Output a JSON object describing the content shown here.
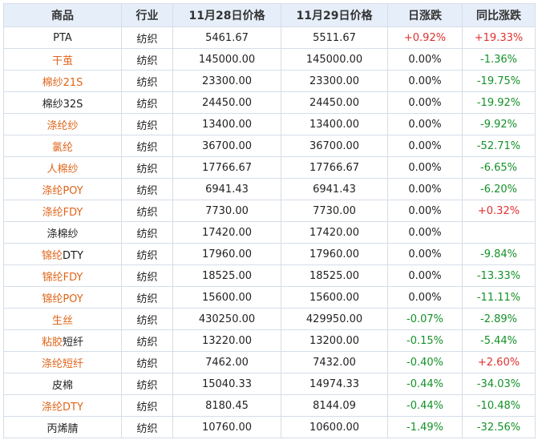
{
  "headers": [
    "商品",
    "行业",
    "11月28日价格",
    "11月29日价格",
    "日涨跌",
    "同比涨跌"
  ],
  "colors": {
    "orange": "#e0651b",
    "red": "#e03030",
    "green": "#149128",
    "header_bg": "#e6eef9",
    "border": "#d5dde8"
  },
  "rows": [
    {
      "name_a": "PTA",
      "name_b": "",
      "name_a_color": "dark",
      "name_b_color": "dark",
      "industry": "纺织",
      "price_1128": "5461.67",
      "price_1129": "5511.67",
      "daily": "+0.92%",
      "daily_color": "red",
      "yoy": "+19.33%",
      "yoy_color": "red"
    },
    {
      "name_a": "干茧",
      "name_b": "",
      "name_a_color": "orange",
      "name_b_color": "orange",
      "industry": "纺织",
      "price_1128": "145000.00",
      "price_1129": "145000.00",
      "daily": "0.00%",
      "daily_color": "dark",
      "yoy": "-1.36%",
      "yoy_color": "green"
    },
    {
      "name_a": "棉纱21S",
      "name_b": "",
      "name_a_color": "orange",
      "name_b_color": "orange",
      "industry": "纺织",
      "price_1128": "23300.00",
      "price_1129": "23300.00",
      "daily": "0.00%",
      "daily_color": "dark",
      "yoy": "-19.75%",
      "yoy_color": "green"
    },
    {
      "name_a": "棉纱32S",
      "name_b": "",
      "name_a_color": "dark",
      "name_b_color": "dark",
      "industry": "纺织",
      "price_1128": "24450.00",
      "price_1129": "24450.00",
      "daily": "0.00%",
      "daily_color": "dark",
      "yoy": "-19.92%",
      "yoy_color": "green"
    },
    {
      "name_a": "涤纶纱",
      "name_b": "",
      "name_a_color": "orange",
      "name_b_color": "orange",
      "industry": "纺织",
      "price_1128": "13400.00",
      "price_1129": "13400.00",
      "daily": "0.00%",
      "daily_color": "dark",
      "yoy": "-9.92%",
      "yoy_color": "green"
    },
    {
      "name_a": "氯纶",
      "name_b": "",
      "name_a_color": "orange",
      "name_b_color": "orange",
      "industry": "纺织",
      "price_1128": "36700.00",
      "price_1129": "36700.00",
      "daily": "0.00%",
      "daily_color": "dark",
      "yoy": "-52.71%",
      "yoy_color": "green"
    },
    {
      "name_a": "人棉纱",
      "name_b": "",
      "name_a_color": "orange",
      "name_b_color": "orange",
      "industry": "纺织",
      "price_1128": "17766.67",
      "price_1129": "17766.67",
      "daily": "0.00%",
      "daily_color": "dark",
      "yoy": "-6.65%",
      "yoy_color": "green"
    },
    {
      "name_a": "涤纶POY",
      "name_b": "",
      "name_a_color": "orange",
      "name_b_color": "orange",
      "industry": "纺织",
      "price_1128": "6941.43",
      "price_1129": "6941.43",
      "daily": "0.00%",
      "daily_color": "dark",
      "yoy": "-6.20%",
      "yoy_color": "green"
    },
    {
      "name_a": "涤纶FDY",
      "name_b": "",
      "name_a_color": "orange",
      "name_b_color": "orange",
      "industry": "纺织",
      "price_1128": "7730.00",
      "price_1129": "7730.00",
      "daily": "0.00%",
      "daily_color": "dark",
      "yoy": "+0.32%",
      "yoy_color": "red"
    },
    {
      "name_a": "涤棉纱",
      "name_b": "",
      "name_a_color": "dark",
      "name_b_color": "dark",
      "industry": "纺织",
      "price_1128": "17420.00",
      "price_1129": "17420.00",
      "daily": "0.00%",
      "daily_color": "dark",
      "yoy": "",
      "yoy_color": "dark"
    },
    {
      "name_a": "锦纶",
      "name_b": "DTY",
      "name_a_color": "orange",
      "name_b_color": "dark",
      "industry": "纺织",
      "price_1128": "17960.00",
      "price_1129": "17960.00",
      "daily": "0.00%",
      "daily_color": "dark",
      "yoy": "-9.84%",
      "yoy_color": "green"
    },
    {
      "name_a": "锦纶FDY",
      "name_b": "",
      "name_a_color": "orange",
      "name_b_color": "orange",
      "industry": "纺织",
      "price_1128": "18525.00",
      "price_1129": "18525.00",
      "daily": "0.00%",
      "daily_color": "dark",
      "yoy": "-13.33%",
      "yoy_color": "green"
    },
    {
      "name_a": "锦纶POY",
      "name_b": "",
      "name_a_color": "orange",
      "name_b_color": "orange",
      "industry": "纺织",
      "price_1128": "15600.00",
      "price_1129": "15600.00",
      "daily": "0.00%",
      "daily_color": "dark",
      "yoy": "-11.11%",
      "yoy_color": "green"
    },
    {
      "name_a": "生丝",
      "name_b": "",
      "name_a_color": "orange",
      "name_b_color": "orange",
      "industry": "纺织",
      "price_1128": "430250.00",
      "price_1129": "429950.00",
      "daily": "-0.07%",
      "daily_color": "green",
      "yoy": "-2.89%",
      "yoy_color": "green"
    },
    {
      "name_a": "粘胶",
      "name_b": "短纤",
      "name_a_color": "orange",
      "name_b_color": "dark",
      "industry": "纺织",
      "price_1128": "13220.00",
      "price_1129": "13200.00",
      "daily": "-0.15%",
      "daily_color": "green",
      "yoy": "-5.44%",
      "yoy_color": "green"
    },
    {
      "name_a": "涤纶短纤",
      "name_b": "",
      "name_a_color": "orange",
      "name_b_color": "orange",
      "industry": "纺织",
      "price_1128": "7462.00",
      "price_1129": "7432.00",
      "daily": "-0.40%",
      "daily_color": "green",
      "yoy": "+2.60%",
      "yoy_color": "red"
    },
    {
      "name_a": "皮棉",
      "name_b": "",
      "name_a_color": "dark",
      "name_b_color": "dark",
      "industry": "纺织",
      "price_1128": "15040.33",
      "price_1129": "14974.33",
      "daily": "-0.44%",
      "daily_color": "green",
      "yoy": "-34.03%",
      "yoy_color": "green"
    },
    {
      "name_a": "涤纶",
      "name_b": "DTY",
      "name_a_color": "orange",
      "name_b_color": "orange",
      "industry": "纺织",
      "price_1128": "8180.45",
      "price_1129": "8144.09",
      "daily": "-0.44%",
      "daily_color": "green",
      "yoy": "-10.48%",
      "yoy_color": "green"
    },
    {
      "name_a": "丙烯腈",
      "name_b": "",
      "name_a_color": "dark",
      "name_b_color": "dark",
      "industry": "纺织",
      "price_1128": "10760.00",
      "price_1129": "10600.00",
      "daily": "-1.49%",
      "daily_color": "green",
      "yoy": "-32.56%",
      "yoy_color": "green"
    }
  ]
}
